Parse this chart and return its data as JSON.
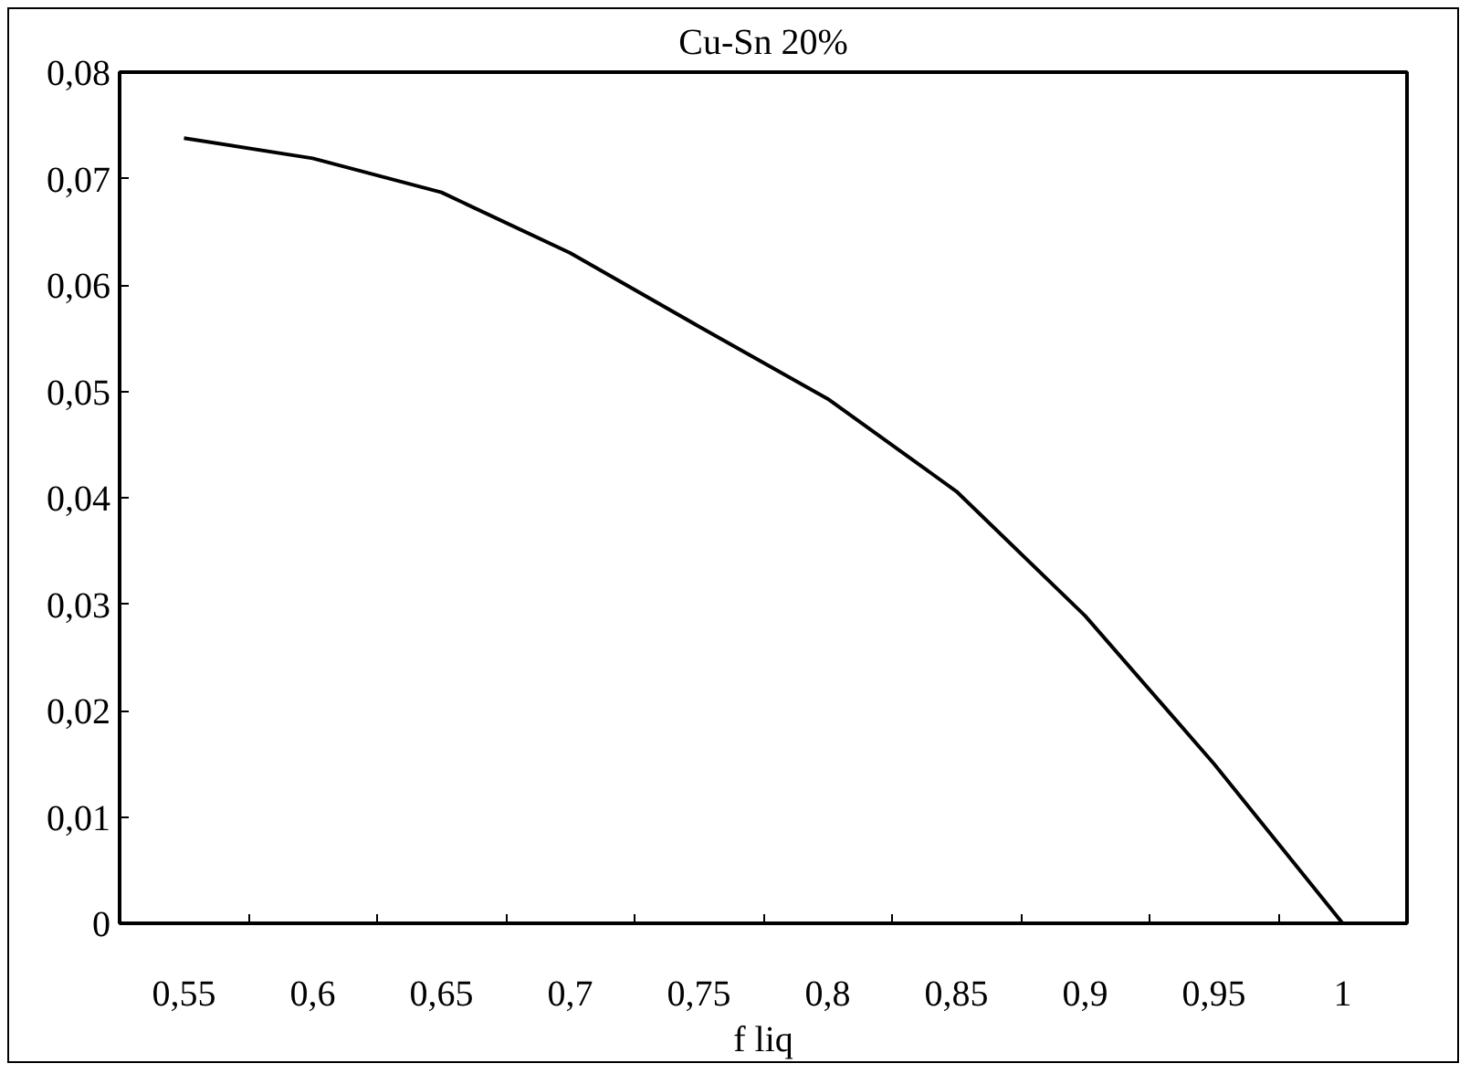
{
  "chart_data": {
    "type": "line",
    "title": "Cu-Sn 20%",
    "xlabel": "f liq",
    "categories": [
      "0,55",
      "0,6",
      "0,65",
      "0,7",
      "0,75",
      "0,8",
      "0,85",
      "0,9",
      "0,95",
      "1"
    ],
    "series": [
      {
        "color": "#000000",
        "values": [
          0.0738,
          0.0719,
          0.0687,
          0.063,
          0.0561,
          0.0493,
          0.0406,
          0.0289,
          0.015,
          0
        ]
      }
    ],
    "ylim": [
      0,
      0.08
    ],
    "yticks": [
      0,
      {
        "value": 0.01,
        "label": "0,01"
      },
      {
        "value": 0.02,
        "label": "0,02"
      },
      {
        "value": 0.03,
        "label": "0,03"
      },
      {
        "value": 0.04,
        "label": "0,04"
      },
      {
        "value": 0.05,
        "label": "0,05"
      },
      {
        "value": 0.06,
        "label": "0,06"
      },
      {
        "value": 0.07,
        "label": "0,07"
      },
      {
        "value": 0.08,
        "label": "0,08"
      }
    ],
    "grid": false,
    "line_style": "solid"
  }
}
